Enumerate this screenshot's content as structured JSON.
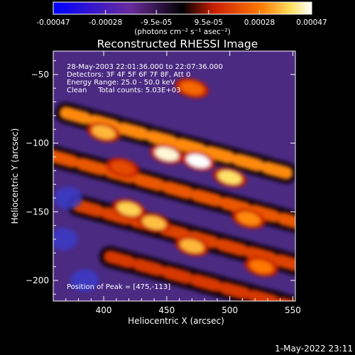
{
  "colorbar": {
    "tick_labels": [
      "-0.00047",
      "-0.00028",
      "-9.5e-05",
      "9.5e-05",
      "0.00028",
      "0.00047"
    ],
    "tick_values": [
      -0.00047,
      -0.00028,
      -9.5e-05,
      9.5e-05,
      0.00028,
      0.00047
    ],
    "range": [
      -0.00047,
      0.00047
    ],
    "unit_label": "(photons cm⁻² s⁻¹ asec⁻²)",
    "colors": [
      "#0000ff",
      "#6a2c9a",
      "#000000",
      "#c81e00",
      "#ff7800",
      "#ffffff"
    ]
  },
  "plot": {
    "title": "Reconstructed RHESSI Image",
    "info_lines": [
      "28-May-2003 22:01:36.000 to 22:07:36.000",
      "Detectors: 3F 4F 5F 6F 7F 8F, Att 0",
      "Energy Range: 25.0 - 50.0 keV",
      "Clean     Total counts: 5.03E+03"
    ],
    "peak_label": "Position of Peak = [475,-113]"
  },
  "chart_data": {
    "type": "heatmap",
    "title": "Reconstructed RHESSI Image",
    "xlabel": "Heliocentric X (arcsec)",
    "ylabel": "Heliocentric Y (arcsec)",
    "xlim": [
      360,
      552
    ],
    "ylim": [
      -215,
      -33
    ],
    "x_ticks": [
      400,
      450,
      500,
      550
    ],
    "y_ticks": [
      -50,
      -100,
      -150,
      -200
    ],
    "x_tick_labels": [
      "400",
      "450",
      "500",
      "550"
    ],
    "y_tick_labels": [
      "−50",
      "−100",
      "−150",
      "−200"
    ],
    "value_range": [
      -0.00047,
      0.00047
    ],
    "peak": [
      475,
      -113
    ],
    "bands": [
      {
        "y": -98,
        "x_from": 370,
        "x_to": 545,
        "slope": -0.25,
        "value": 0.0003
      },
      {
        "y": -132,
        "x_from": 360,
        "x_to": 552,
        "slope": -0.25,
        "value": 0.00022
      },
      {
        "y": -163,
        "x_from": 380,
        "x_to": 552,
        "slope": -0.25,
        "value": 0.00018
      },
      {
        "y": -194,
        "x_from": 405,
        "x_to": 552,
        "slope": -0.25,
        "value": 0.00016
      }
    ],
    "blobs": [
      {
        "x": 475,
        "y": -113,
        "value": 0.00047
      },
      {
        "x": 450,
        "y": -108,
        "value": 0.00045
      },
      {
        "x": 500,
        "y": -125,
        "value": 0.0004
      },
      {
        "x": 420,
        "y": -148,
        "value": 0.00038
      },
      {
        "x": 400,
        "y": -92,
        "value": 0.00035
      },
      {
        "x": 440,
        "y": -158,
        "value": 0.00036
      },
      {
        "x": 470,
        "y": -175,
        "value": 0.00035
      },
      {
        "x": 515,
        "y": -155,
        "value": 0.0003
      },
      {
        "x": 525,
        "y": -190,
        "value": 0.00028
      },
      {
        "x": 470,
        "y": -60,
        "value": 0.00025
      },
      {
        "x": 415,
        "y": -118,
        "value": 0.0002
      }
    ]
  },
  "footer": {
    "timestamp": "1-May-2022 23:11"
  }
}
